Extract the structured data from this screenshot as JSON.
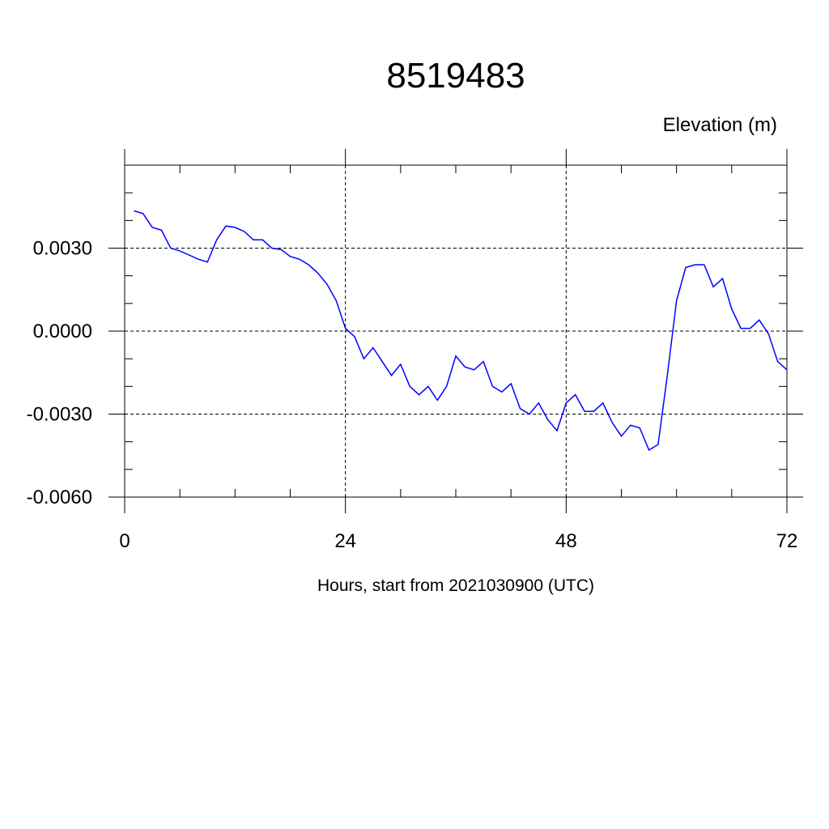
{
  "chart_data": {
    "type": "line",
    "title": "8519483",
    "ylabel": "Elevation (m)",
    "xlabel": "Hours, start from 2021030900 (UTC)",
    "xlim": [
      0,
      72
    ],
    "ylim": [
      -0.006,
      0.006
    ],
    "x_ticks": [
      0,
      24,
      48,
      72
    ],
    "x_tick_labels": [
      "0",
      "24",
      "48",
      "72"
    ],
    "y_ticks": [
      0.003,
      0.0,
      -0.003,
      -0.006
    ],
    "y_tick_labels": [
      "0.0030",
      "0.0000",
      "-0.0030",
      "-0.0060"
    ],
    "grid": true,
    "line_color": "#0000ff",
    "series": [
      {
        "x": [
          1,
          2,
          3,
          4,
          5,
          6,
          7,
          8,
          9,
          10,
          11,
          12,
          13,
          14,
          15,
          16,
          17,
          18,
          19,
          20,
          21,
          22,
          23,
          24,
          25,
          26,
          27,
          28,
          29,
          30,
          31,
          32,
          33,
          34,
          35,
          36,
          37,
          38,
          39,
          40,
          41,
          42,
          43,
          44,
          45,
          46,
          47,
          48,
          49,
          50,
          51,
          52,
          53,
          54,
          55,
          56,
          57,
          58,
          59,
          60,
          61,
          62,
          63,
          64,
          65,
          66,
          67,
          68,
          69,
          70,
          71,
          72
        ],
        "values": [
          0.00435,
          0.00425,
          0.00375,
          0.00365,
          0.003,
          0.0029,
          0.00275,
          0.0026,
          0.0025,
          0.0033,
          0.0038,
          0.00375,
          0.0036,
          0.0033,
          0.0033,
          0.003,
          0.00295,
          0.0027,
          0.0026,
          0.0024,
          0.0021,
          0.0017,
          0.0011,
          0.0001,
          -0.0002,
          -0.001,
          -0.0006,
          -0.0011,
          -0.0016,
          -0.0012,
          -0.002,
          -0.0023,
          -0.002,
          -0.0025,
          -0.002,
          -0.0009,
          -0.0013,
          -0.0014,
          -0.0011,
          -0.002,
          -0.0022,
          -0.0019,
          -0.0028,
          -0.003,
          -0.0026,
          -0.0032,
          -0.0036,
          -0.0026,
          -0.0023,
          -0.0029,
          -0.0029,
          -0.0026,
          -0.0033,
          -0.0038,
          -0.0034,
          -0.0035,
          -0.0043,
          -0.0041,
          -0.0016,
          0.0011,
          0.0023,
          0.0024,
          0.0024,
          0.0016,
          0.0019,
          0.0008,
          0.0001,
          0.0001,
          0.0004,
          -0.0001,
          -0.0011,
          -0.0014
        ]
      }
    ]
  }
}
